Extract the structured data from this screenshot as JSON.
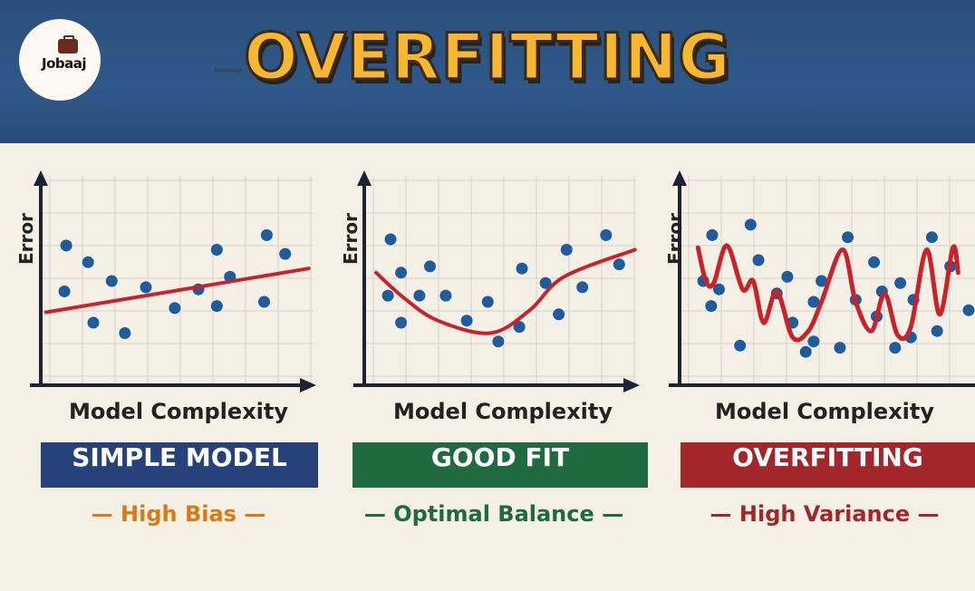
{
  "header": {
    "title": "OVERFITTING",
    "logo": {
      "name": "Jobaaj",
      "sub": "Learnings"
    }
  },
  "colors": {
    "point": "#1f5c9c",
    "fit": "#c8222a",
    "blue": "#27427a",
    "green": "#1f6b3f",
    "red": "#a3262a",
    "orange": "#d97a16"
  },
  "panels": [
    {
      "ylabel": "Error",
      "xlabel": "Model Complexity",
      "banner": "SIMPLE MODEL",
      "subtitle": "High Bias",
      "points": [
        [
          0.97,
          6.7
        ],
        [
          1.8,
          5.9
        ],
        [
          0.9,
          4.5
        ],
        [
          2.7,
          5.0
        ],
        [
          2.0,
          3.0
        ],
        [
          3.2,
          2.5
        ],
        [
          4.0,
          4.7
        ],
        [
          5.1,
          3.7
        ],
        [
          6.0,
          4.6
        ],
        [
          6.7,
          6.5
        ],
        [
          6.7,
          3.8
        ],
        [
          7.2,
          5.2
        ],
        [
          8.6,
          7.2
        ],
        [
          9.3,
          6.3
        ],
        [
          8.5,
          4.0
        ]
      ],
      "fit": [
        [
          0.2,
          3.5
        ],
        [
          10.2,
          5.6
        ]
      ]
    },
    {
      "ylabel": "Error",
      "xlabel": "Model Complexity",
      "banner": "GOOD FIT",
      "subtitle": "Optimal Balance",
      "points": [
        [
          1.0,
          7.0
        ],
        [
          1.4,
          5.4
        ],
        [
          0.9,
          4.3
        ],
        [
          2.5,
          5.7
        ],
        [
          2.1,
          4.3
        ],
        [
          1.4,
          3.0
        ],
        [
          3.1,
          4.3
        ],
        [
          3.9,
          3.1
        ],
        [
          4.7,
          4.0
        ],
        [
          5.1,
          2.1
        ],
        [
          6.0,
          5.6
        ],
        [
          5.9,
          2.8
        ],
        [
          6.9,
          4.9
        ],
        [
          7.4,
          3.4
        ],
        [
          7.7,
          6.5
        ],
        [
          8.3,
          4.7
        ],
        [
          9.2,
          7.2
        ],
        [
          9.7,
          5.8
        ]
      ],
      "fit": [
        [
          0.45,
          5.4
        ],
        [
          1.5,
          4.2
        ],
        [
          2.8,
          3.1
        ],
        [
          4.8,
          2.5
        ],
        [
          6.3,
          3.6
        ],
        [
          7.6,
          5.2
        ],
        [
          10.3,
          6.5
        ]
      ]
    },
    {
      "ylabel": "Error",
      "xlabel": "Model Complexity",
      "banner": "OVERFITTING",
      "subtitle": "High Variance",
      "points": [
        [
          1.24,
          7.2
        ],
        [
          2.7,
          7.7
        ],
        [
          3.0,
          6.0
        ],
        [
          1.2,
          3.8
        ],
        [
          2.3,
          1.9
        ],
        [
          4.1,
          5.2
        ],
        [
          3.7,
          4.4
        ],
        [
          4.3,
          3.0
        ],
        [
          4.8,
          1.6
        ],
        [
          5.1,
          4.0
        ],
        [
          5.4,
          5.0
        ],
        [
          5.1,
          2.1
        ],
        [
          6.1,
          1.8
        ],
        [
          6.4,
          7.1
        ],
        [
          6.7,
          4.1
        ],
        [
          7.4,
          5.9
        ],
        [
          7.7,
          4.5
        ],
        [
          8.4,
          4.9
        ],
        [
          8.2,
          1.8
        ],
        [
          8.8,
          2.3
        ],
        [
          8.9,
          4.1
        ],
        [
          9.6,
          7.1
        ],
        [
          9.8,
          2.6
        ],
        [
          10.3,
          5.7
        ],
        [
          11.0,
          3.6
        ],
        [
          7.5,
          3.3
        ],
        [
          0.9,
          5.0
        ],
        [
          1.5,
          4.6
        ]
      ],
      "fit": [
        [
          0.7,
          6.6
        ],
        [
          1.0,
          5.0
        ],
        [
          1.3,
          4.9
        ],
        [
          1.8,
          6.7
        ],
        [
          2.4,
          4.6
        ],
        [
          2.8,
          5.0
        ],
        [
          3.2,
          3.0
        ],
        [
          3.7,
          4.5
        ],
        [
          4.3,
          2.3
        ],
        [
          4.9,
          2.6
        ],
        [
          5.4,
          4.0
        ],
        [
          6.2,
          6.5
        ],
        [
          6.7,
          4.0
        ],
        [
          7.3,
          2.6
        ],
        [
          7.8,
          4.4
        ],
        [
          8.3,
          2.4
        ],
        [
          8.8,
          2.8
        ],
        [
          9.4,
          6.5
        ],
        [
          9.9,
          3.4
        ],
        [
          10.4,
          6.6
        ],
        [
          10.6,
          5.4
        ]
      ]
    }
  ]
}
